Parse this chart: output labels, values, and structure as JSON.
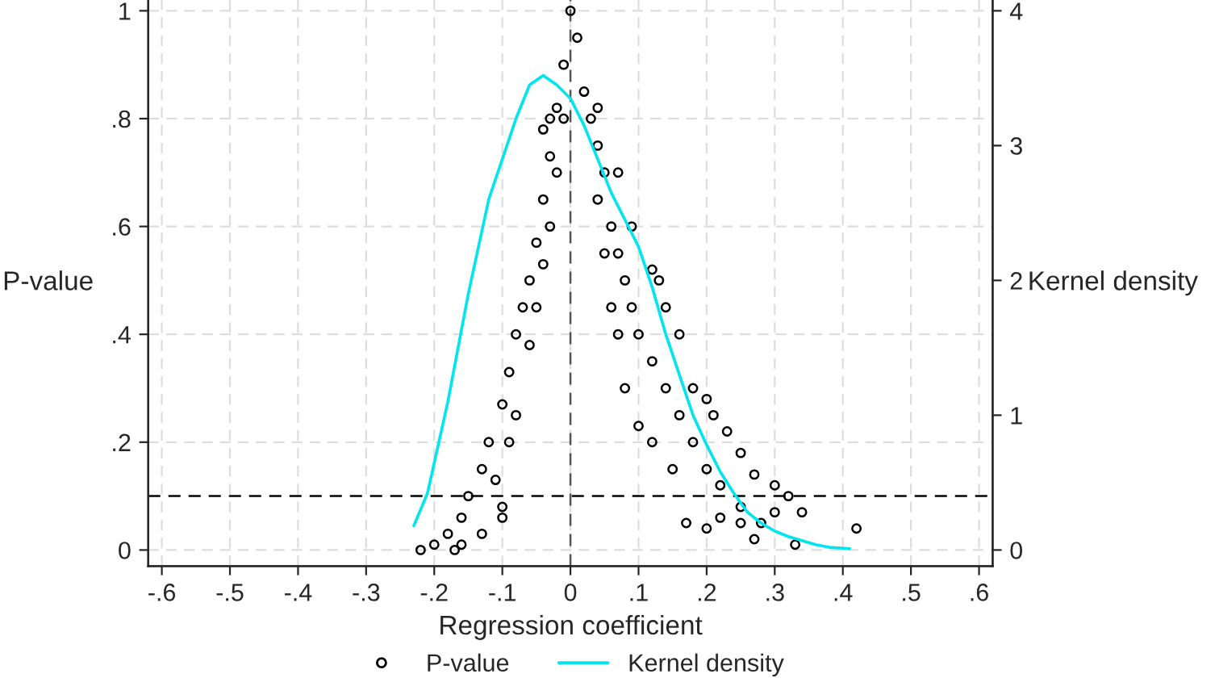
{
  "chart_data": {
    "type": "scatter",
    "xlabel": "Regression coefficient",
    "ylabel": "P-value",
    "y2label": "Kernel density",
    "xlim": [
      -0.62,
      0.62
    ],
    "ylim": [
      -0.03,
      1.02
    ],
    "y2lim": [
      -0.12,
      4.08
    ],
    "xticks": [
      {
        "value": -0.6,
        "label": "-.6"
      },
      {
        "value": -0.5,
        "label": "-.5"
      },
      {
        "value": -0.4,
        "label": "-.4"
      },
      {
        "value": -0.3,
        "label": "-.3"
      },
      {
        "value": -0.2,
        "label": "-.2"
      },
      {
        "value": -0.1,
        "label": "-.1"
      },
      0,
      {
        "value": 0.1,
        "label": ".1"
      },
      {
        "value": 0.2,
        "label": ".2"
      },
      {
        "value": 0.3,
        "label": ".3"
      },
      {
        "value": 0.4,
        "label": ".4"
      },
      {
        "value": 0.5,
        "label": ".5"
      },
      {
        "value": 0.6,
        "label": ".6"
      }
    ],
    "yticks": [
      0,
      {
        "value": 0.2,
        "label": ".2"
      },
      {
        "value": 0.4,
        "label": ".4"
      },
      {
        "value": 0.6,
        "label": ".6"
      },
      {
        "value": 0.8,
        "label": ".8"
      },
      1
    ],
    "y2ticks": [
      0,
      1,
      2,
      3,
      4
    ],
    "grid": true,
    "legend": "bottom",
    "ref_lines": [
      {
        "axis": "y",
        "value": 0.1,
        "color": "#000000",
        "line_style": "dashed"
      },
      {
        "axis": "x",
        "value": 0,
        "color": "#555555",
        "line_style": "dashed"
      }
    ],
    "series": [
      {
        "name": "P-value",
        "marker": "circle",
        "color": "#000000",
        "x": [
          -0.22,
          -0.2,
          -0.18,
          -0.16,
          -0.15,
          -0.13,
          -0.12,
          -0.1,
          -0.09,
          -0.08,
          -0.07,
          -0.06,
          -0.05,
          -0.04,
          -0.03,
          -0.02,
          -0.01,
          0,
          -0.16,
          -0.17,
          -0.13,
          -0.1,
          -0.1,
          -0.11,
          -0.09,
          -0.08,
          -0.06,
          -0.05,
          -0.04,
          -0.03,
          -0.02,
          -0.01,
          -0.04,
          -0.03,
          0.01,
          0.02,
          0.03,
          0.04,
          0.05,
          0.06,
          0.07,
          0.08,
          0.09,
          0.1,
          0.12,
          0.14,
          0.16,
          0.18,
          0.2,
          0.22,
          0.25,
          0.28,
          0.33,
          0.42,
          0.04,
          0.07,
          0.09,
          0.12,
          0.13,
          0.14,
          0.16,
          0.18,
          0.2,
          0.21,
          0.23,
          0.25,
          0.27,
          0.3,
          0.32,
          0.34,
          0.04,
          0.05,
          0.06,
          0.07,
          0.08,
          0.1,
          0.12,
          0.15,
          0.17,
          0.2,
          0.22,
          0.25,
          0.27,
          0.3
        ],
        "values": [
          0,
          0.01,
          0.03,
          0.06,
          0.1,
          0.15,
          0.2,
          0.27,
          0.33,
          0.4,
          0.45,
          0.5,
          0.57,
          0.65,
          0.73,
          0.82,
          0.9,
          1,
          0.01,
          0,
          0.03,
          0.08,
          0.06,
          0.13,
          0.2,
          0.25,
          0.38,
          0.45,
          0.53,
          0.6,
          0.7,
          0.8,
          0.78,
          0.8,
          0.95,
          0.85,
          0.8,
          0.75,
          0.7,
          0.6,
          0.55,
          0.5,
          0.45,
          0.4,
          0.35,
          0.3,
          0.25,
          0.2,
          0.15,
          0.12,
          0.08,
          0.05,
          0.01,
          0.04,
          0.82,
          0.7,
          0.6,
          0.52,
          0.5,
          0.45,
          0.4,
          0.3,
          0.28,
          0.25,
          0.22,
          0.18,
          0.14,
          0.12,
          0.1,
          0.07,
          0.65,
          0.55,
          0.45,
          0.4,
          0.3,
          0.23,
          0.2,
          0.15,
          0.05,
          0.04,
          0.06,
          0.05,
          0.02,
          0.07
        ]
      },
      {
        "name": "Kernel density",
        "type": "line",
        "marker": "none",
        "axis": "y2",
        "color": "#00e5ee",
        "x": [
          -0.23,
          -0.21,
          -0.18,
          -0.15,
          -0.12,
          -0.1,
          -0.08,
          -0.06,
          -0.04,
          -0.02,
          0,
          0.02,
          0.04,
          0.06,
          0.08,
          0.1,
          0.12,
          0.14,
          0.16,
          0.18,
          0.2,
          0.22,
          0.24,
          0.26,
          0.28,
          0.3,
          0.32,
          0.34,
          0.36,
          0.38,
          0.41
        ],
        "values": [
          0.18,
          0.42,
          1.1,
          1.9,
          2.6,
          2.9,
          3.2,
          3.45,
          3.52,
          3.45,
          3.35,
          3.15,
          2.9,
          2.65,
          2.45,
          2.25,
          1.95,
          1.6,
          1.3,
          1.0,
          0.78,
          0.58,
          0.42,
          0.28,
          0.2,
          0.14,
          0.1,
          0.07,
          0.04,
          0.02,
          0.01
        ]
      }
    ]
  }
}
